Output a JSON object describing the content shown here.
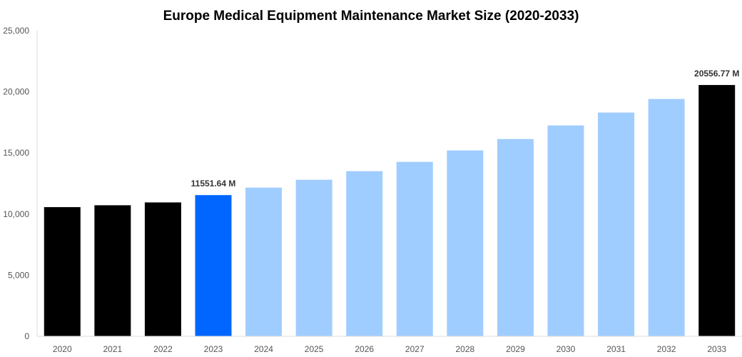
{
  "chart_data": {
    "type": "bar",
    "title": "Europe Medical Equipment Maintenance Market Size (2020-2033)",
    "xlabel": "",
    "ylabel": "",
    "ylim": [
      0,
      25000
    ],
    "yticks": [
      0,
      5000,
      10000,
      15000,
      20000,
      25000
    ],
    "ytick_labels": [
      "0",
      "5,000",
      "10,000",
      "15,000",
      "20,000",
      "25,000"
    ],
    "grid": false,
    "categories": [
      "2020",
      "2021",
      "2022",
      "2023",
      "2024",
      "2025",
      "2026",
      "2027",
      "2028",
      "2029",
      "2030",
      "2031",
      "2032",
      "2033"
    ],
    "values": [
      10567,
      10720,
      10953,
      11551.64,
      12164,
      12807,
      13509,
      14269,
      15205,
      16140,
      17251,
      18304,
      19415,
      20556.77
    ],
    "colors": [
      "#000000",
      "#000000",
      "#000000",
      "#0066ff",
      "#a0cdff",
      "#a0cdff",
      "#a0cdff",
      "#a0cdff",
      "#a0cdff",
      "#a0cdff",
      "#a0cdff",
      "#a0cdff",
      "#a0cdff",
      "#000000"
    ],
    "data_labels": {
      "3": "11551.64 M",
      "13": "20556.77 M"
    }
  }
}
